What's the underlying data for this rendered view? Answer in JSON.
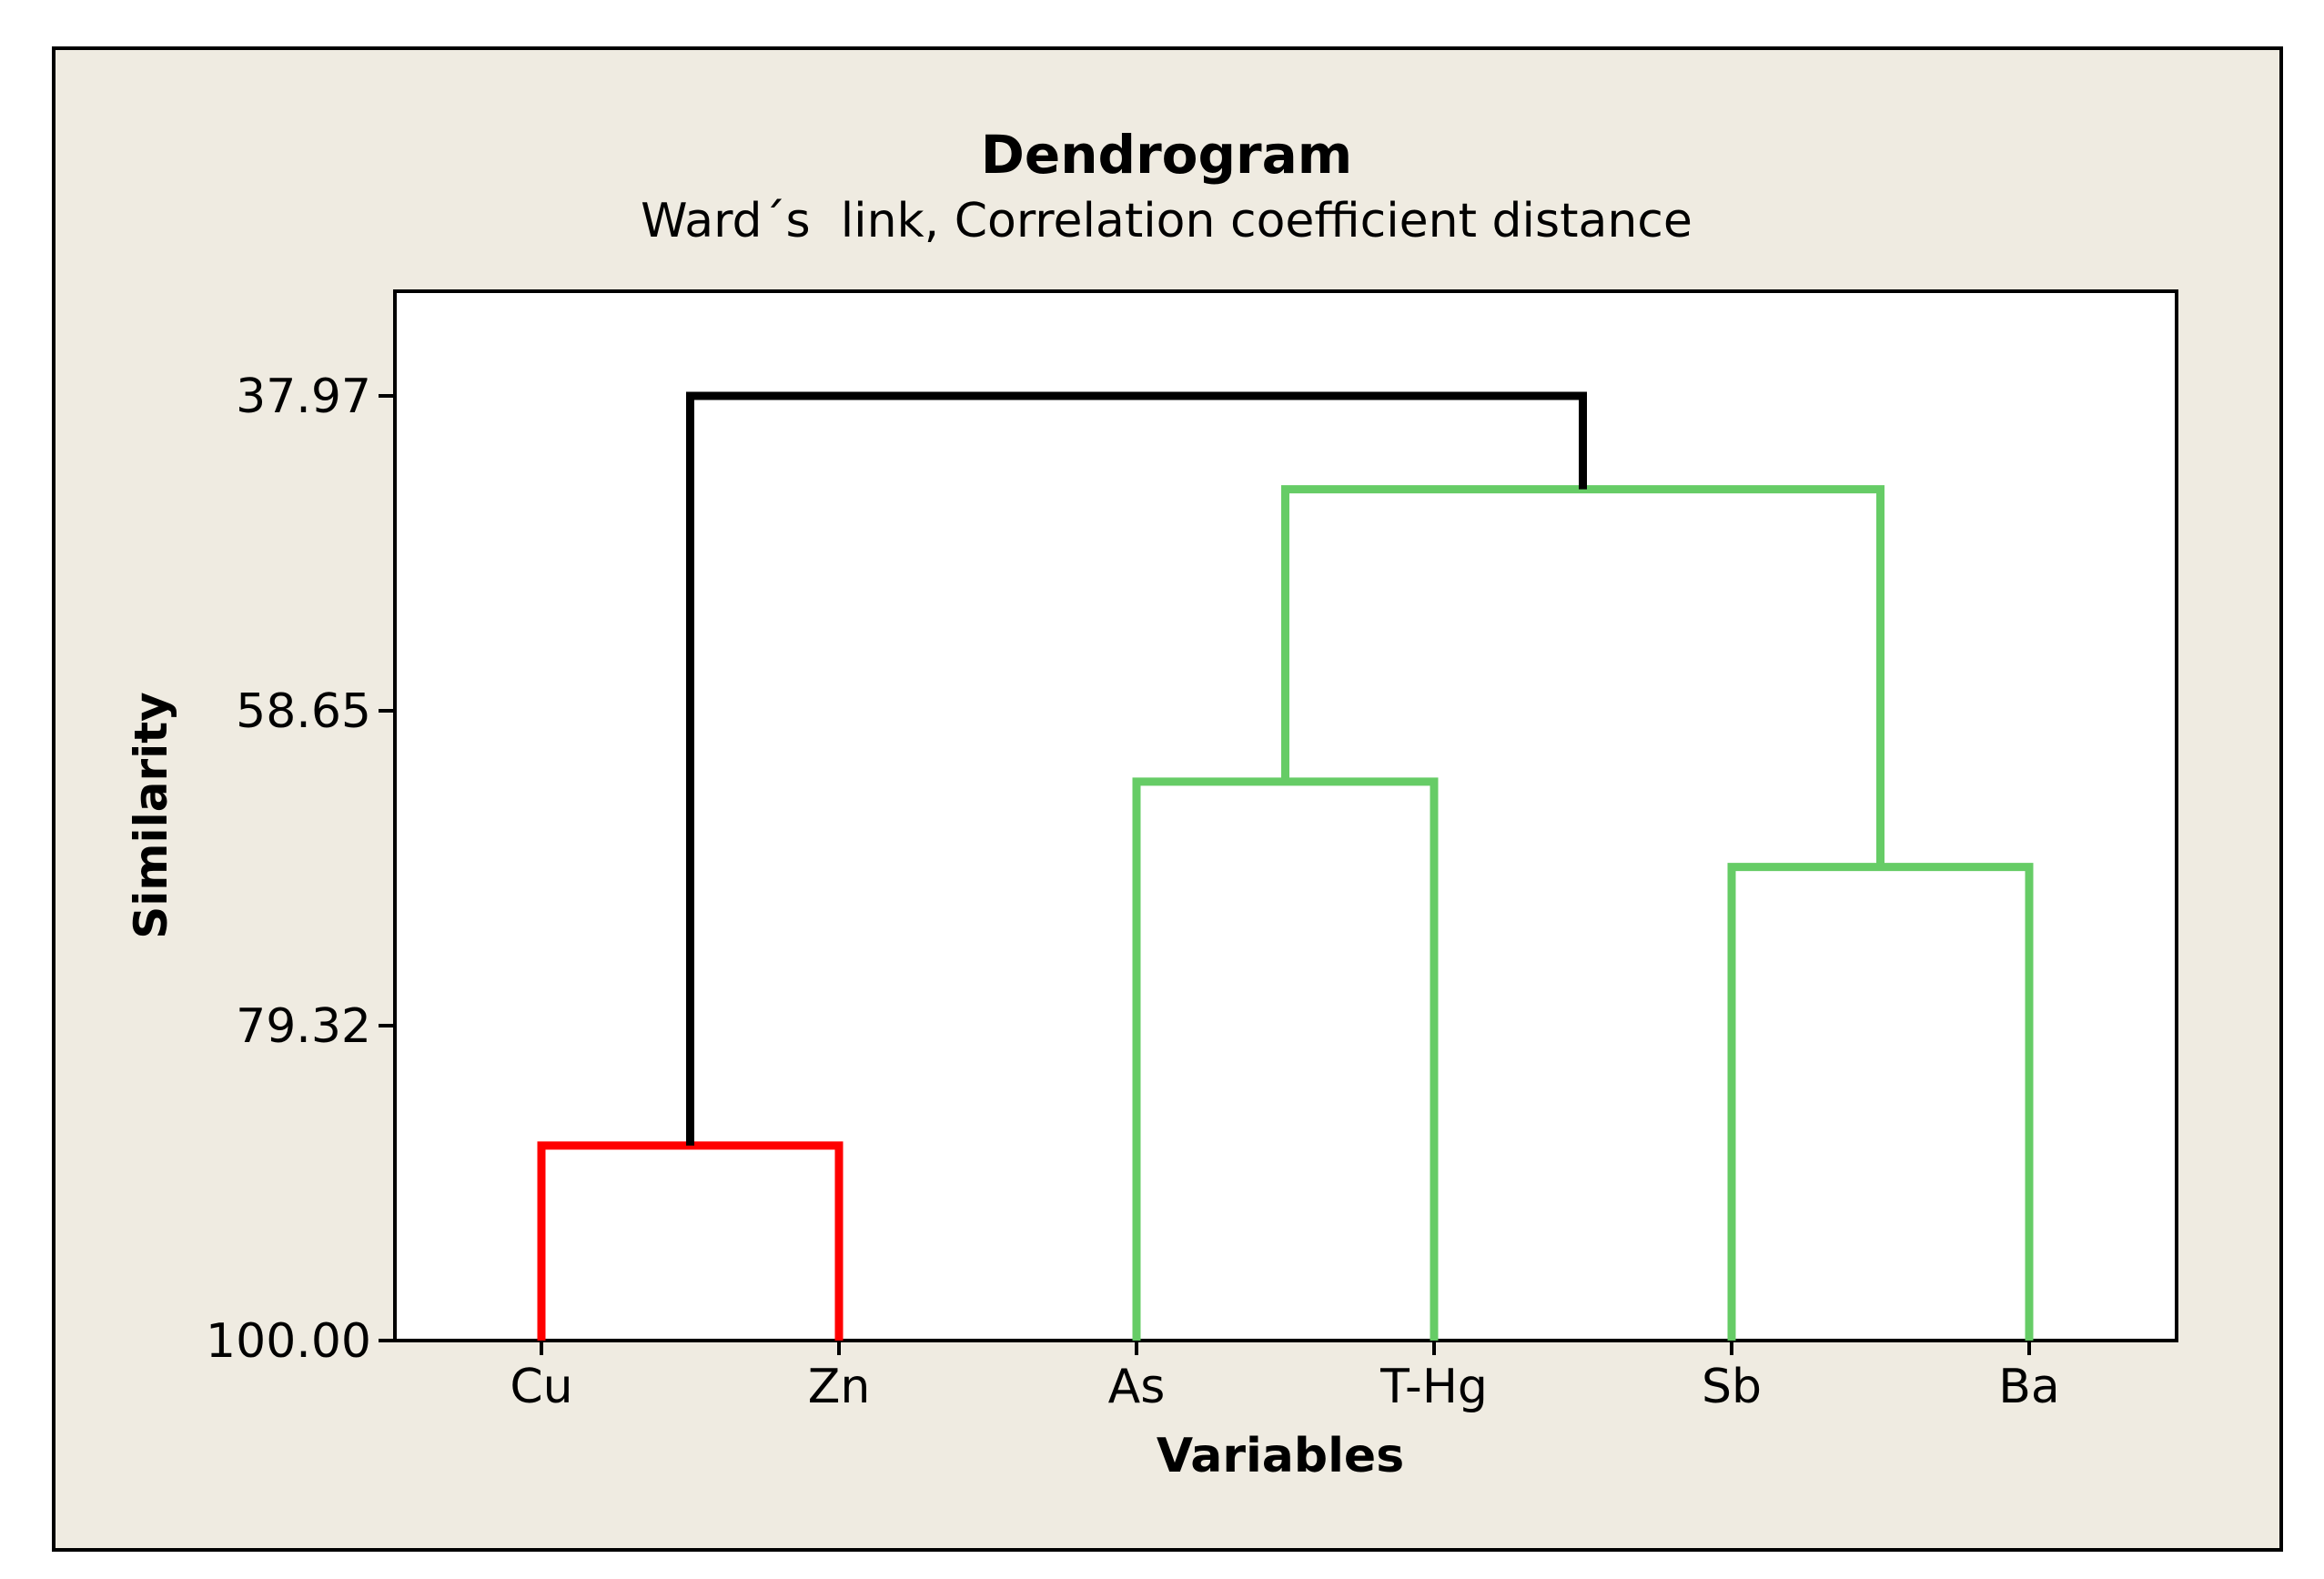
{
  "chart_data": {
    "type": "dendrogram",
    "title": "Dendrogram",
    "subtitle": "Ward´s  link, Correlation coefficient distance",
    "xlabel": "Variables",
    "ylabel": "Similarity",
    "yticks": [
      "37.97",
      "58.65",
      "79.32",
      "100.00"
    ],
    "ylim": [
      100.0,
      37.97
    ],
    "leaves": [
      "Cu",
      "Zn",
      "As",
      "T-Hg",
      "Sb",
      "Ba"
    ],
    "merges": [
      {
        "left": "Cu",
        "right": "Zn",
        "similarity": 87.2,
        "color": "#ff0000"
      },
      {
        "left": "As",
        "right": "T-Hg",
        "similarity": 63.3,
        "color": "#66cc66"
      },
      {
        "left": "Sb",
        "right": "Ba",
        "similarity": 68.9,
        "color": "#66cc66"
      },
      {
        "left": "As+T-Hg",
        "right": "Sb+Ba",
        "similarity": 44.1,
        "color": "#66cc66"
      },
      {
        "left": "Cu+Zn",
        "right": "As+T-Hg+Sb+Ba",
        "similarity": 37.97,
        "color": "#000000"
      }
    ],
    "grid": false,
    "legend": "none"
  },
  "colors": {
    "outer_background": "#efebe1",
    "plot_background": "#ffffff",
    "axis": "#000000",
    "cluster_red": "#ff0000",
    "cluster_green": "#66cc66",
    "root_link": "#000000"
  }
}
